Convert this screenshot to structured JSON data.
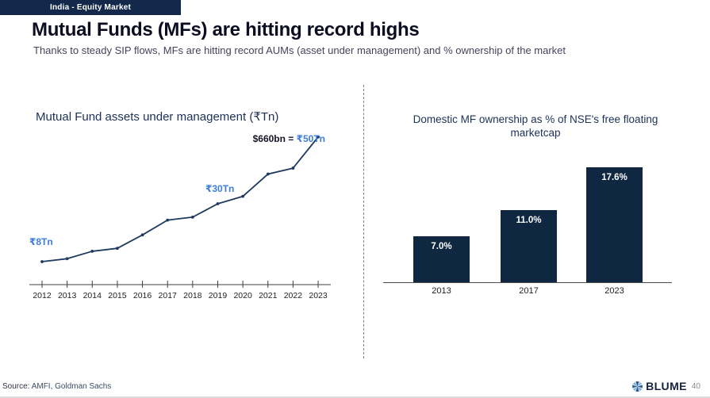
{
  "badge": {
    "label": "India - Equity Market"
  },
  "header": {
    "title": "Mutual Funds (MFs) are hitting record highs",
    "subtitle": "Thanks to steady SIP flows, MFs are hitting record AUMs (asset under management) and % ownership of the market"
  },
  "colors": {
    "badge_bg": "#14284b",
    "bar_navy": "#102742",
    "line_navy": "#1e3a5f",
    "accent_blue": "#3e7ed8",
    "chart_title_navy": "#1c3157",
    "page_num_gray": "#8a8a8a"
  },
  "chart_data": [
    {
      "type": "line",
      "title": "Mutual Fund assets under management (₹Tn)",
      "x": [
        "2012",
        "2013",
        "2014",
        "2015",
        "2016",
        "2017",
        "2018",
        "2019",
        "2020",
        "2021",
        "2022",
        "2023"
      ],
      "values": [
        8,
        9,
        11.5,
        12.5,
        17,
        22,
        23,
        27.5,
        30,
        37.5,
        39.5,
        50
      ],
      "ylabel": "₹Tn",
      "ylim": [
        0,
        53
      ],
      "grid": false,
      "markers": true,
      "legend": "none",
      "annotations": [
        {
          "text": "₹8Tn",
          "near": "2012"
        },
        {
          "text": "₹30Tn",
          "near": "2020"
        },
        {
          "prefix": "$660bn = ",
          "value": "₹50Tn",
          "near": "2023"
        }
      ]
    },
    {
      "type": "bar",
      "title": "Domestic MF ownership as % of NSE's free floating marketcap",
      "categories": [
        "2013",
        "2017",
        "2023"
      ],
      "values": [
        7.0,
        11.0,
        17.6
      ],
      "labels": [
        "7.0%",
        "11.0%",
        "17.6%"
      ],
      "ylim": [
        0,
        18.5
      ],
      "grid": false,
      "legend": "none"
    }
  ],
  "footer": {
    "source_label": "Source:",
    "source_value": " AMFI, Goldman Sachs",
    "brand": "BLUME",
    "page_number": "40"
  }
}
